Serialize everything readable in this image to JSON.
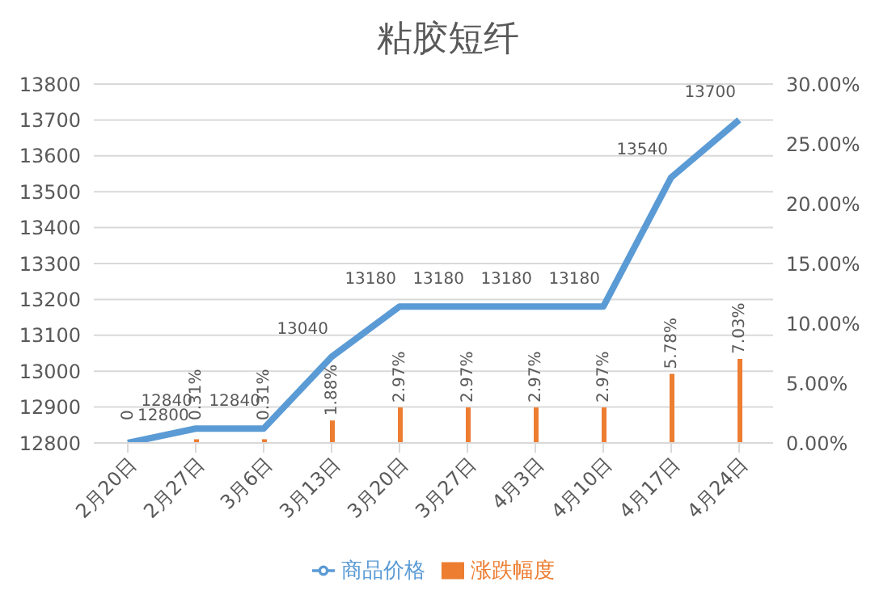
{
  "chart_data": {
    "type": "bar",
    "title": "粘胶短纤",
    "categories": [
      "2月20日",
      "2月27日",
      "3月6日",
      "3月13日",
      "3月20日",
      "3月27日",
      "4月3日",
      "4月10日",
      "4月17日",
      "4月24日"
    ],
    "series": [
      {
        "name": "涨跌幅度",
        "axis": "y2",
        "color": "#ed7d31",
        "values": [
          0,
          0.31,
          0.31,
          1.88,
          2.97,
          2.97,
          2.97,
          2.97,
          5.78,
          7.03
        ],
        "value_labels": [
          "0",
          "0.31%",
          "0.31%",
          "1.88%",
          "2.97%",
          "2.97%",
          "2.97%",
          "2.97%",
          "5.78%",
          "7.03%"
        ]
      },
      {
        "name": "商品价格",
        "type": "line",
        "color": "#5b9bd5",
        "values": [
          12800,
          12840,
          12840,
          13040,
          13180,
          13180,
          13180,
          13180,
          13540,
          13700
        ],
        "value_labels": [
          "12800",
          "12840",
          "12840",
          "13040",
          "13180",
          "13180",
          "13180",
          "13180",
          "13540",
          "13700"
        ]
      }
    ],
    "ylim": [
      12800,
      13800
    ],
    "yticks": [
      12800,
      12900,
      13000,
      13100,
      13200,
      13300,
      13400,
      13500,
      13600,
      13700,
      13800
    ],
    "y2lim": [
      0,
      30
    ],
    "y2ticks": [
      {
        "value": 0,
        "label": "0.00%"
      },
      {
        "value": 5,
        "label": "5.00%"
      },
      {
        "value": 10,
        "label": "10.00%"
      },
      {
        "value": 15,
        "label": "15.00%"
      },
      {
        "value": 20,
        "label": "20.00%"
      },
      {
        "value": 25,
        "label": "25.00%"
      },
      {
        "value": 30,
        "label": "30.00%"
      }
    ],
    "grid": "y",
    "legend": "bottom",
    "marker": "none"
  }
}
